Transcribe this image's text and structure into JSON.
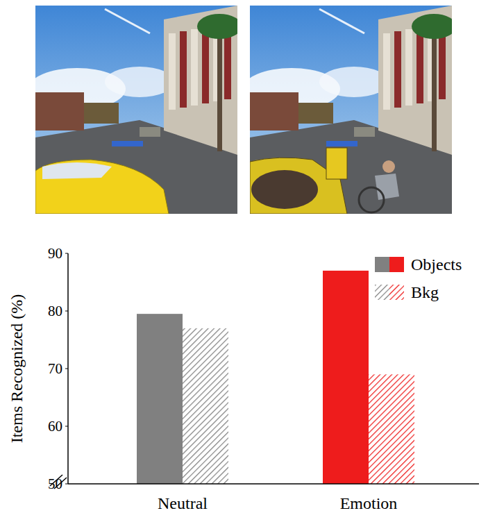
{
  "chart_data": {
    "type": "bar",
    "categories": [
      "Neutral",
      "Emotion"
    ],
    "series": [
      {
        "name": "Objects",
        "colors": [
          "#808080",
          "#ee1c1c"
        ],
        "line_style": "solid",
        "values": [
          79.5,
          87
        ]
      },
      {
        "name": "Bkg",
        "colors": [
          "#808080",
          "#ee1c1c"
        ],
        "line_style": "hatched",
        "values": [
          77,
          69
        ]
      }
    ],
    "y_label": "Items Recognized (%)",
    "ylim": [
      50,
      90
    ],
    "yticks": [
      50,
      60,
      70,
      80,
      90
    ],
    "grid": false,
    "legend": "top-right"
  }
}
